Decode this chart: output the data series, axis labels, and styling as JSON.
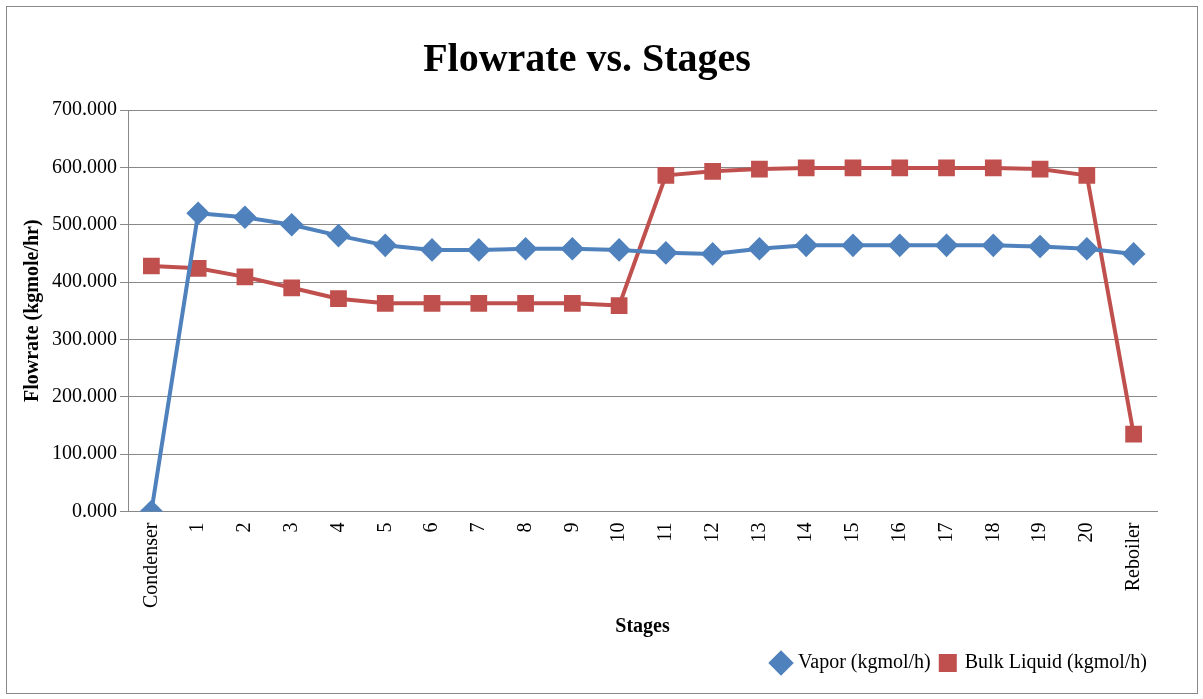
{
  "chart_data": {
    "type": "line",
    "title": "Flowrate vs. Stages",
    "xlabel": "Stages",
    "ylabel": "Flowrate (kgmole/hr)",
    "categories": [
      "Condenser",
      "1",
      "2",
      "3",
      "4",
      "5",
      "6",
      "7",
      "8",
      "9",
      "10",
      "11",
      "12",
      "13",
      "14",
      "15",
      "16",
      "17",
      "18",
      "19",
      "20",
      "Reboiler"
    ],
    "series": [
      {
        "name": "Vapor (kgmol/h)",
        "color": "#4f81bd",
        "marker": "diamond",
        "values": [
          0,
          520,
          513,
          500,
          481,
          464,
          456,
          456,
          458,
          458,
          456,
          451,
          449,
          458,
          464,
          464,
          464,
          464,
          464,
          462,
          458,
          449
        ]
      },
      {
        "name": "Bulk Liquid (kgmol/h)",
        "color": "#c0504d",
        "marker": "square",
        "values": [
          428,
          424,
          409,
          390,
          371,
          363,
          363,
          363,
          363,
          363,
          359,
          586,
          593,
          597,
          599,
          599,
          599,
          599,
          599,
          597,
          586,
          135
        ]
      }
    ],
    "ylim": [
      0,
      700
    ],
    "yticks": [
      {
        "value": 0,
        "label": "0.000"
      },
      {
        "value": 100,
        "label": "100.000"
      },
      {
        "value": 200,
        "label": "200.000"
      },
      {
        "value": 300,
        "label": "300.000"
      },
      {
        "value": 400,
        "label": "400.000"
      },
      {
        "value": 500,
        "label": "500.000"
      },
      {
        "value": 600,
        "label": "600.000"
      },
      {
        "value": 700,
        "label": "700.000"
      }
    ],
    "grid": "y",
    "legend": "bottom right",
    "line_style": "solid"
  }
}
